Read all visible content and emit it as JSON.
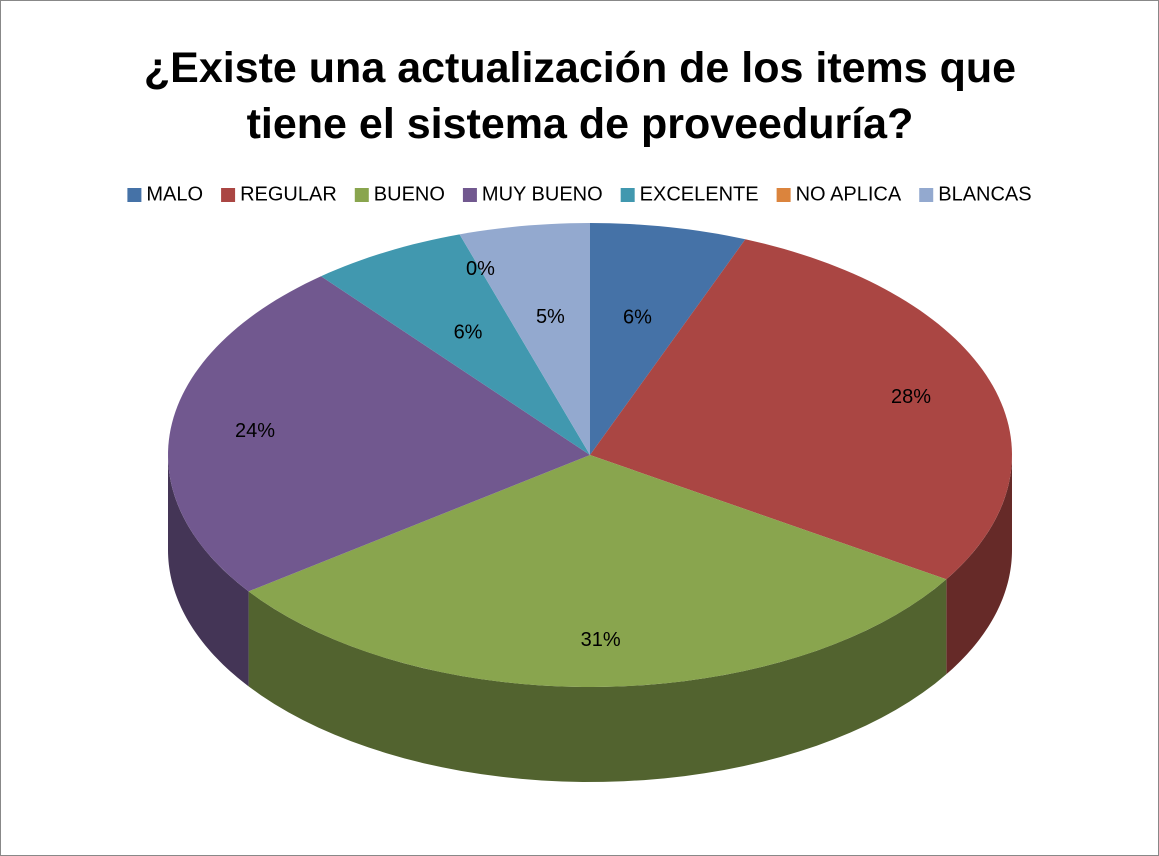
{
  "chart_data": {
    "type": "pie",
    "title": "¿Existe una actualización de los items que tiene el sistema de proveeduría?",
    "categories": [
      "MALO",
      "REGULAR",
      "BUENO",
      "MUY BUENO",
      "EXCELENTE",
      "NO APLICA",
      "BLANCAS"
    ],
    "values": [
      6,
      28,
      31,
      24,
      6,
      0,
      5
    ],
    "value_labels": [
      "6%",
      "28%",
      "31%",
      "24%",
      "6%",
      "0%",
      "5%"
    ],
    "colors": [
      "#4572a7",
      "#aa4643",
      "#89a54e",
      "#71588f",
      "#4198af",
      "#db843d",
      "#93a9cf"
    ],
    "legend": "top"
  }
}
